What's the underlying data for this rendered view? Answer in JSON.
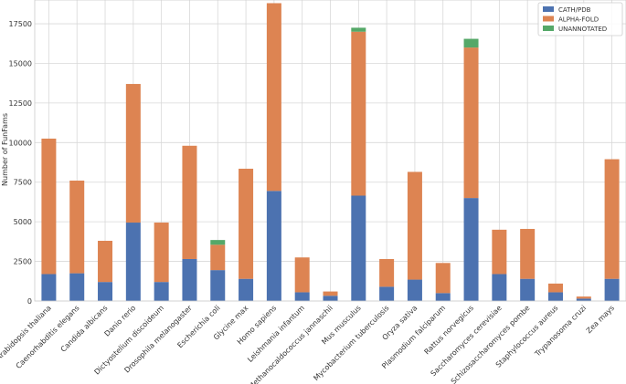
{
  "chart_data": {
    "type": "bar",
    "stacked": true,
    "title": "",
    "xlabel": "",
    "ylabel": "Number of FunFams",
    "ylim": [
      0,
      19000
    ],
    "yticks": [
      0,
      2500,
      5000,
      7500,
      10000,
      12500,
      15000,
      17500
    ],
    "grid": true,
    "legend_position": "top-right",
    "categories": [
      "Arabidopsis thaliana",
      "Caenorhabditis elegans",
      "Candida albicans",
      "Danio rerio",
      "Dictyostelium discoideum",
      "Drosophila melanogaster",
      "Escherichia coli",
      "Glycine max",
      "Homo sapiens",
      "Leishmania infantum",
      "Methanocaldococcus jannaschii",
      "Mus musculus",
      "Mycobacterium tuberculosis",
      "Oryza sativa",
      "Plasmodium falciparum",
      "Rattus norvegicus",
      "Saccharomyces cerevisiae",
      "Schizosaccharomyces pombe",
      "Staphylococcus aureus",
      "Trypanosoma cruzi",
      "Zea mays"
    ],
    "series": [
      {
        "name": "CATH/PDB",
        "color": "#4c72b0",
        "values": [
          1700,
          1750,
          1200,
          4950,
          1200,
          2650,
          1950,
          1400,
          6950,
          550,
          330,
          6650,
          900,
          1350,
          500,
          6500,
          1700,
          1400,
          550,
          150,
          1400
        ]
      },
      {
        "name": "ALPHA-FOLD",
        "color": "#dd8452",
        "values": [
          8550,
          5850,
          2600,
          8750,
          3750,
          7150,
          1600,
          6950,
          11850,
          2200,
          270,
          10350,
          1750,
          6800,
          1900,
          9500,
          2800,
          3150,
          550,
          130,
          7550
        ]
      },
      {
        "name": "UNANNOTATED",
        "color": "#55a868",
        "values": [
          0,
          0,
          0,
          0,
          0,
          0,
          300,
          0,
          0,
          0,
          0,
          250,
          0,
          0,
          0,
          550,
          0,
          0,
          0,
          0,
          0
        ]
      }
    ]
  }
}
